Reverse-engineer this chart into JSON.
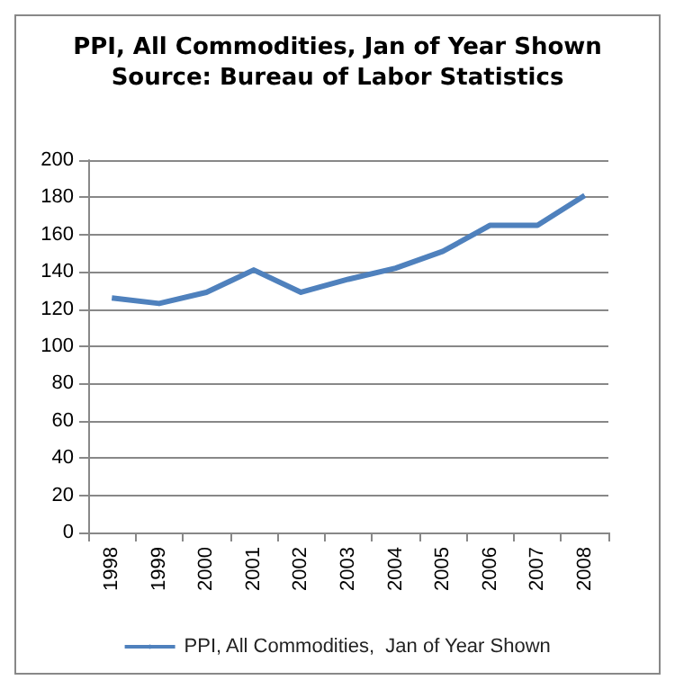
{
  "chart_data": {
    "type": "line",
    "title": "PPI, All Commodities, Jan of Year Shown",
    "subtitle": "Source: Bureau of Labor Statistics",
    "categories": [
      "1998",
      "1999",
      "2000",
      "2001",
      "2002",
      "2003",
      "2004",
      "2005",
      "2006",
      "2007",
      "2008"
    ],
    "series": [
      {
        "name": "PPI, All Commodities,  Jan of Year Shown",
        "color": "#4f81bd",
        "values": [
          126,
          123,
          129,
          141,
          129,
          136,
          142,
          151,
          165,
          165,
          181
        ]
      }
    ],
    "ylim": [
      0,
      200
    ],
    "yticks": [
      0,
      20,
      40,
      60,
      80,
      100,
      120,
      140,
      160,
      180,
      200
    ],
    "grid": "y",
    "legend": "bottom",
    "marker": "none",
    "line_style": "solid"
  }
}
